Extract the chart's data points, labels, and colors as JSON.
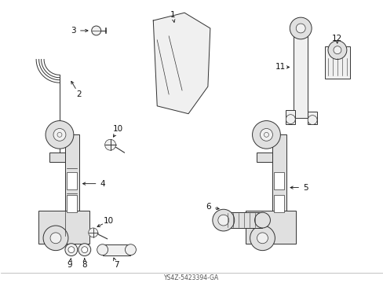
{
  "background_color": "#ffffff",
  "fig_width": 4.89,
  "fig_height": 3.6,
  "dpi": 100,
  "line_color": "#333333",
  "fill_light": "#f0f0f0",
  "fill_mid": "#e0e0e0",
  "label_color": "#111111",
  "label_fontsize": 7.5
}
